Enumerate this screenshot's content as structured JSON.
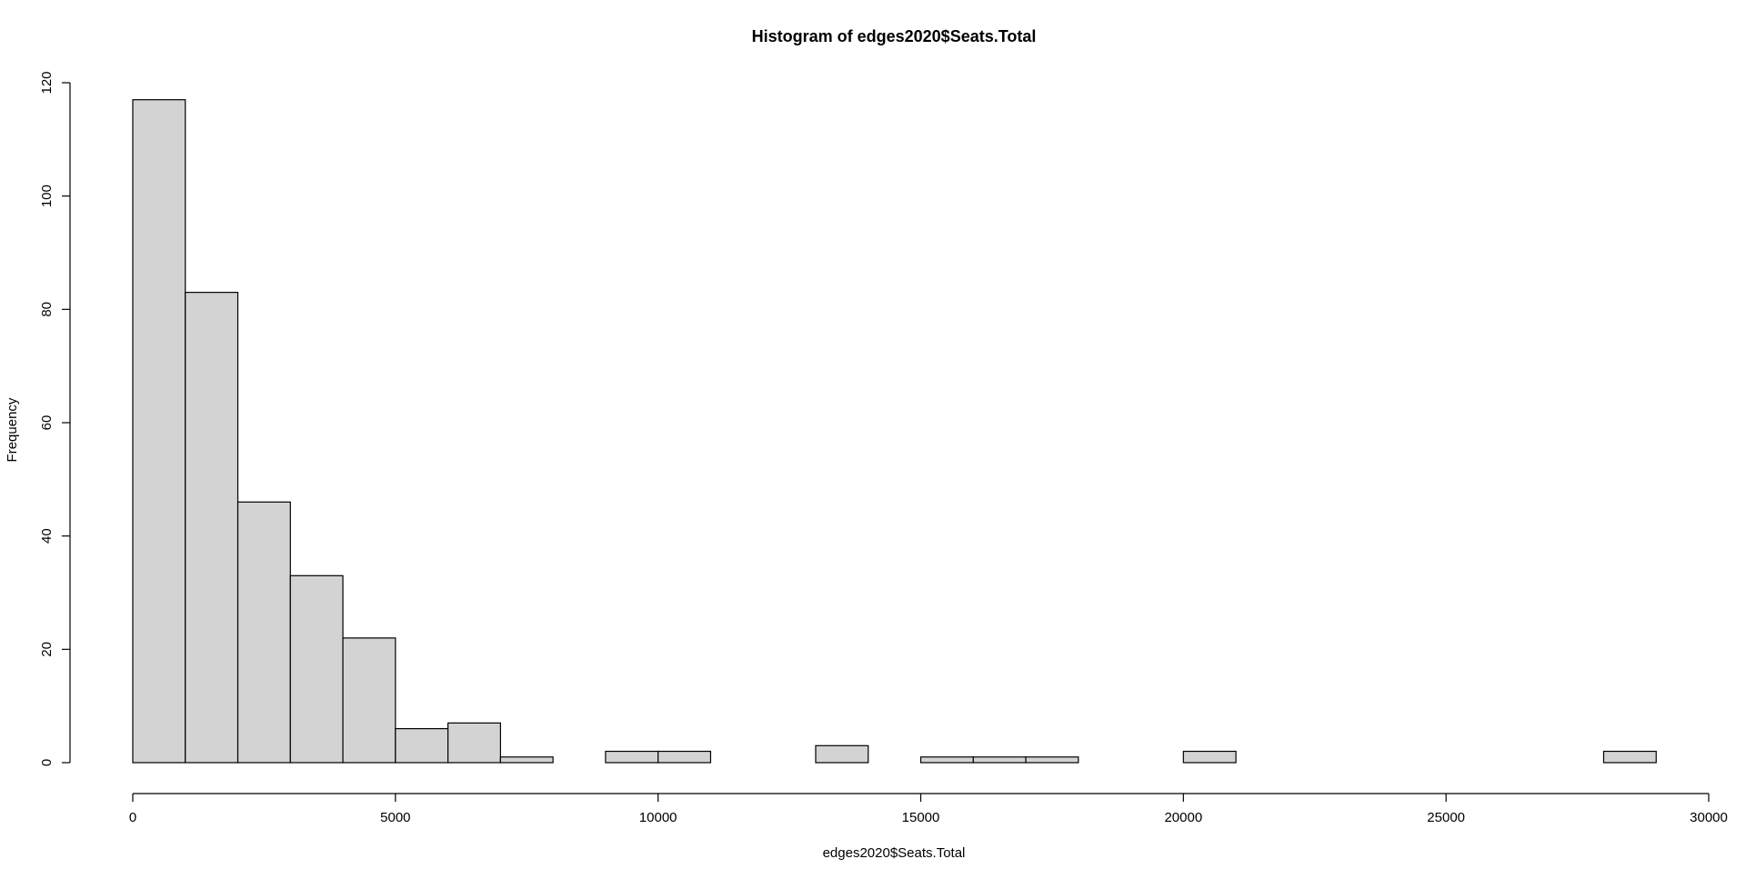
{
  "chart_data": {
    "type": "bar",
    "title": "Histogram of edges2020$Seats.Total",
    "xlabel": "edges2020$Seats.Total",
    "ylabel": "Frequency",
    "xlim": [
      0,
      30000
    ],
    "ylim": [
      0,
      120
    ],
    "bin_width": 1000,
    "bins": [
      {
        "start": 0,
        "end": 1000,
        "count": 117
      },
      {
        "start": 1000,
        "end": 2000,
        "count": 83
      },
      {
        "start": 2000,
        "end": 3000,
        "count": 46
      },
      {
        "start": 3000,
        "end": 4000,
        "count": 33
      },
      {
        "start": 4000,
        "end": 5000,
        "count": 22
      },
      {
        "start": 5000,
        "end": 6000,
        "count": 6
      },
      {
        "start": 6000,
        "end": 7000,
        "count": 7
      },
      {
        "start": 7000,
        "end": 8000,
        "count": 1
      },
      {
        "start": 8000,
        "end": 9000,
        "count": 0
      },
      {
        "start": 9000,
        "end": 10000,
        "count": 2
      },
      {
        "start": 10000,
        "end": 11000,
        "count": 2
      },
      {
        "start": 11000,
        "end": 12000,
        "count": 0
      },
      {
        "start": 12000,
        "end": 13000,
        "count": 0
      },
      {
        "start": 13000,
        "end": 14000,
        "count": 3
      },
      {
        "start": 14000,
        "end": 15000,
        "count": 0
      },
      {
        "start": 15000,
        "end": 16000,
        "count": 1
      },
      {
        "start": 16000,
        "end": 17000,
        "count": 1
      },
      {
        "start": 17000,
        "end": 18000,
        "count": 1
      },
      {
        "start": 18000,
        "end": 19000,
        "count": 0
      },
      {
        "start": 19000,
        "end": 20000,
        "count": 0
      },
      {
        "start": 20000,
        "end": 21000,
        "count": 2
      },
      {
        "start": 21000,
        "end": 22000,
        "count": 0
      },
      {
        "start": 22000,
        "end": 23000,
        "count": 0
      },
      {
        "start": 23000,
        "end": 24000,
        "count": 0
      },
      {
        "start": 24000,
        "end": 25000,
        "count": 0
      },
      {
        "start": 25000,
        "end": 26000,
        "count": 0
      },
      {
        "start": 26000,
        "end": 27000,
        "count": 0
      },
      {
        "start": 27000,
        "end": 28000,
        "count": 0
      },
      {
        "start": 28000,
        "end": 29000,
        "count": 2
      }
    ],
    "x_ticks": [
      0,
      5000,
      10000,
      15000,
      20000,
      25000,
      30000
    ],
    "x_tick_labels": [
      "0",
      "5000",
      "10000",
      "15000",
      "20000",
      "25000",
      "30000"
    ],
    "y_ticks": [
      0,
      20,
      40,
      60,
      80,
      100,
      120
    ],
    "y_tick_labels": [
      "0",
      "20",
      "40",
      "60",
      "80",
      "100",
      "120"
    ],
    "grid": false,
    "legend": "none",
    "bar_fill": "#d3d3d3",
    "bar_stroke": "#000000"
  }
}
